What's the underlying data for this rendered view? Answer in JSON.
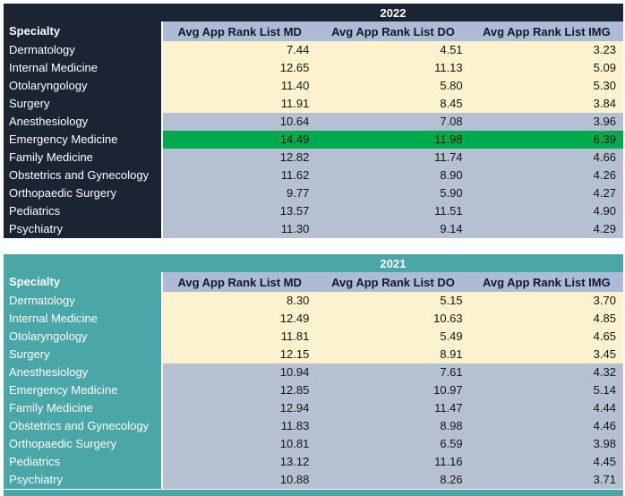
{
  "colors": {
    "navy": "#1B2433",
    "teal": "#4BA6A7",
    "header_blue": "#AEBBD6",
    "cream": "#FCF2CE",
    "gray_row": "#B5C0D2",
    "green": "#00AB4E"
  },
  "tables": [
    {
      "year": "2022",
      "specialty_header": "Specialty",
      "columns": [
        "Avg App Rank List MD",
        "Avg App Rank List DO",
        "Avg App Rank List IMG"
      ],
      "rows": [
        {
          "specialty": "Dermatology",
          "md": "7.44",
          "do": "4.51",
          "img": "3.23",
          "band": "cream"
        },
        {
          "specialty": "Internal Medicine",
          "md": "12.65",
          "do": "11.13",
          "img": "5.09",
          "band": "cream"
        },
        {
          "specialty": "Otolaryngology",
          "md": "11.40",
          "do": "5.80",
          "img": "5.30",
          "band": "cream"
        },
        {
          "specialty": "Surgery",
          "md": "11.91",
          "do": "8.45",
          "img": "3.84",
          "band": "cream"
        },
        {
          "specialty": "Anesthesiology",
          "md": "10.64",
          "do": "7.08",
          "img": "3.96",
          "band": "gray"
        },
        {
          "specialty": "Emergency Medicine",
          "md": "14.49",
          "do": "11.98",
          "img": "6.39",
          "band": "green"
        },
        {
          "specialty": "Family Medicine",
          "md": "12.82",
          "do": "11.74",
          "img": "4.66",
          "band": "gray"
        },
        {
          "specialty": "Obstetrics and Gynecology",
          "md": "11.62",
          "do": "8.90",
          "img": "4.26",
          "band": "gray"
        },
        {
          "specialty": "Orthopaedic Surgery",
          "md": "9.77",
          "do": "5.90",
          "img": "4.27",
          "band": "gray"
        },
        {
          "specialty": "Pediatrics",
          "md": "13.57",
          "do": "11.51",
          "img": "4.90",
          "band": "gray"
        },
        {
          "specialty": "Psychiatry",
          "md": "11.30",
          "do": "9.14",
          "img": "4.29",
          "band": "gray"
        }
      ]
    },
    {
      "year": "2021",
      "specialty_header": "Specialty",
      "columns": [
        "Avg App Rank List MD",
        "Avg App Rank List DO",
        "Avg App Rank List IMG"
      ],
      "rows": [
        {
          "specialty": "Dermatology",
          "md": "8.30",
          "do": "5.15",
          "img": "3.70",
          "band": "cream"
        },
        {
          "specialty": "Internal Medicine",
          "md": "12.49",
          "do": "10.63",
          "img": "4.85",
          "band": "cream"
        },
        {
          "specialty": "Otolaryngology",
          "md": "11.81",
          "do": "5.49",
          "img": "4.65",
          "band": "cream"
        },
        {
          "specialty": "Surgery",
          "md": "12.15",
          "do": "8.91",
          "img": "3.45",
          "band": "cream"
        },
        {
          "specialty": "Anesthesiology",
          "md": "10.94",
          "do": "7.61",
          "img": "4.32",
          "band": "gray"
        },
        {
          "specialty": "Emergency Medicine",
          "md": "12.85",
          "do": "10.97",
          "img": "5.14",
          "band": "gray"
        },
        {
          "specialty": "Family Medicine",
          "md": "12.94",
          "do": "11.47",
          "img": "4.44",
          "band": "gray"
        },
        {
          "specialty": "Obstetrics and Gynecology",
          "md": "11.83",
          "do": "8.98",
          "img": "4.46",
          "band": "gray"
        },
        {
          "specialty": "Orthopaedic Surgery",
          "md": "10.81",
          "do": "6.59",
          "img": "3.98",
          "band": "gray"
        },
        {
          "specialty": "Pediatrics",
          "md": "13.12",
          "do": "11.16",
          "img": "4.45",
          "band": "gray"
        },
        {
          "specialty": "Psychiatry",
          "md": "10.88",
          "do": "8.26",
          "img": "3.71",
          "band": "gray"
        }
      ]
    }
  ],
  "chart_data": [
    {
      "type": "table",
      "title": "2022",
      "columns": [
        "Specialty",
        "Avg App Rank List MD",
        "Avg App Rank List DO",
        "Avg App Rank List IMG"
      ],
      "rows": [
        [
          "Dermatology",
          7.44,
          4.51,
          3.23
        ],
        [
          "Internal Medicine",
          12.65,
          11.13,
          5.09
        ],
        [
          "Otolaryngology",
          11.4,
          5.8,
          5.3
        ],
        [
          "Surgery",
          11.91,
          8.45,
          3.84
        ],
        [
          "Anesthesiology",
          10.64,
          7.08,
          3.96
        ],
        [
          "Emergency Medicine",
          14.49,
          11.98,
          6.39
        ],
        [
          "Family Medicine",
          12.82,
          11.74,
          4.66
        ],
        [
          "Obstetrics and Gynecology",
          11.62,
          8.9,
          4.26
        ],
        [
          "Orthopaedic Surgery",
          9.77,
          5.9,
          4.27
        ],
        [
          "Pediatrics",
          13.57,
          11.51,
          4.9
        ],
        [
          "Psychiatry",
          11.3,
          9.14,
          4.29
        ]
      ],
      "highlighted_row": "Emergency Medicine"
    },
    {
      "type": "table",
      "title": "2021",
      "columns": [
        "Specialty",
        "Avg App Rank List MD",
        "Avg App Rank List DO",
        "Avg App Rank List IMG"
      ],
      "rows": [
        [
          "Dermatology",
          8.3,
          5.15,
          3.7
        ],
        [
          "Internal Medicine",
          12.49,
          10.63,
          4.85
        ],
        [
          "Otolaryngology",
          11.81,
          5.49,
          4.65
        ],
        [
          "Surgery",
          12.15,
          8.91,
          3.45
        ],
        [
          "Anesthesiology",
          10.94,
          7.61,
          4.32
        ],
        [
          "Emergency Medicine",
          12.85,
          10.97,
          5.14
        ],
        [
          "Family Medicine",
          12.94,
          11.47,
          4.44
        ],
        [
          "Obstetrics and Gynecology",
          11.83,
          8.98,
          4.46
        ],
        [
          "Orthopaedic Surgery",
          10.81,
          6.59,
          3.98
        ],
        [
          "Pediatrics",
          13.12,
          11.16,
          4.45
        ],
        [
          "Psychiatry",
          10.88,
          8.26,
          3.71
        ]
      ],
      "highlighted_row": null
    }
  ]
}
